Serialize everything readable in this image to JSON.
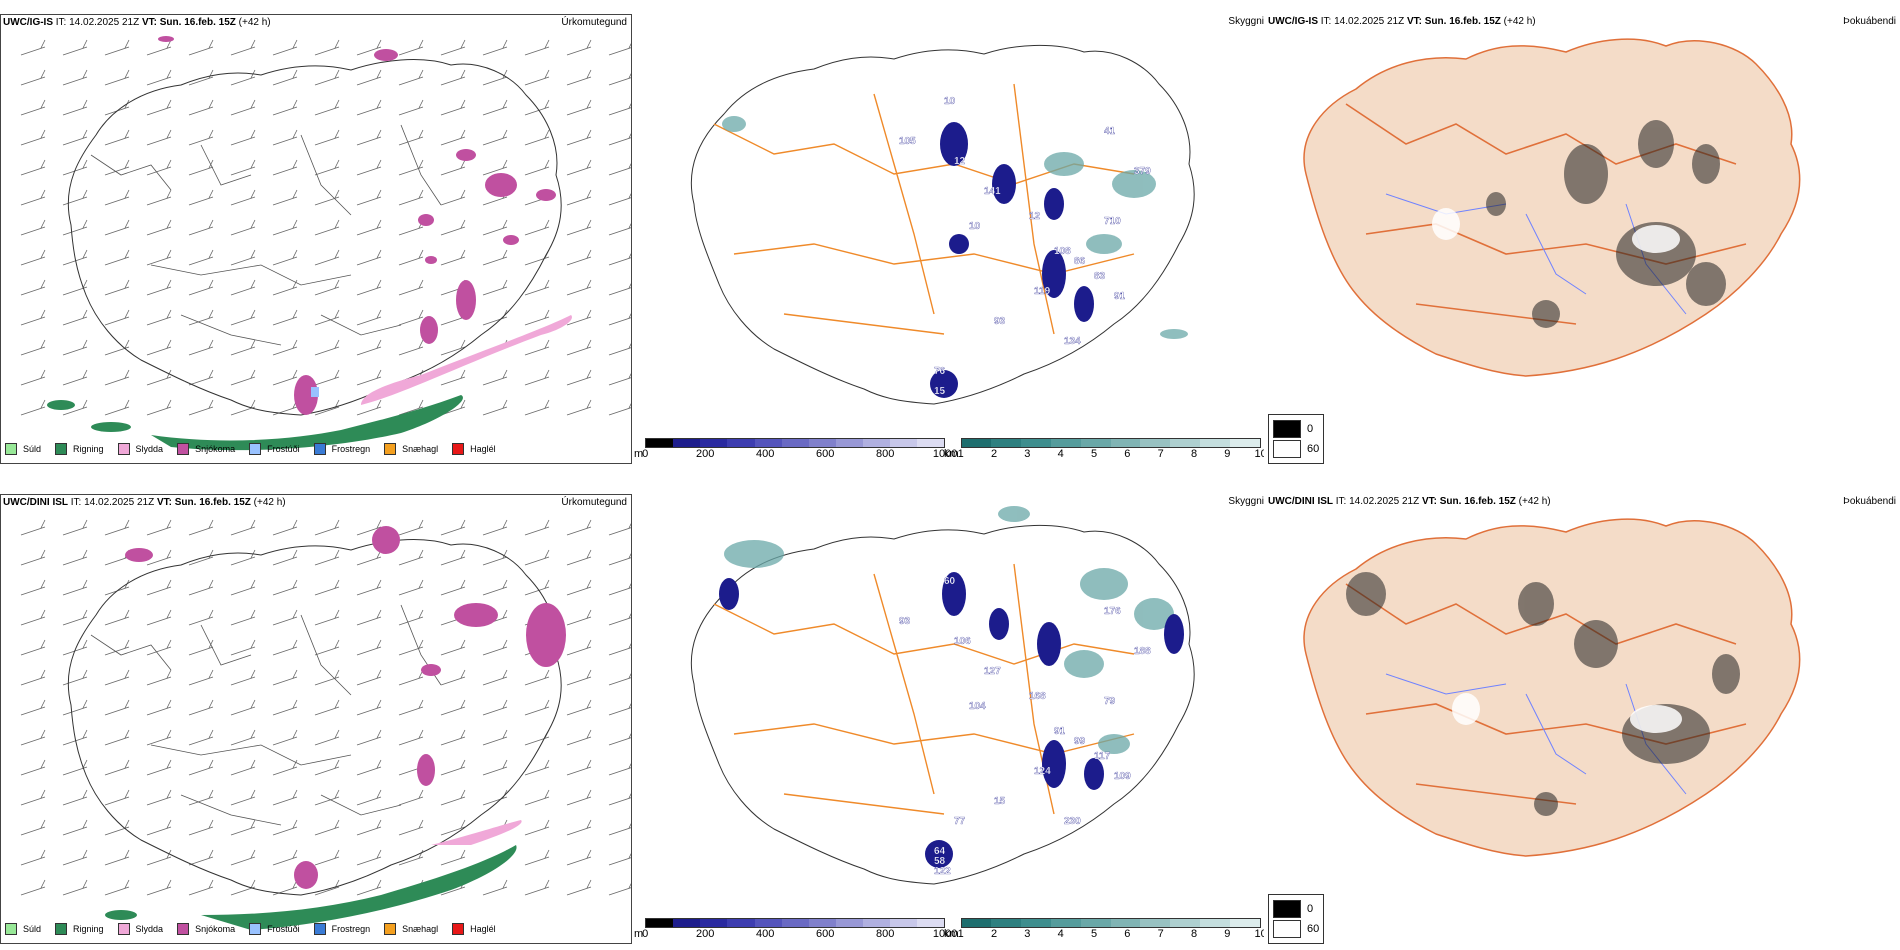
{
  "colors": {
    "roads": "#ef8a2a",
    "rivers": "#6f82ff",
    "land_fog": "#f4dcc8",
    "rain": "#2e8b57",
    "snow": "#c050a0",
    "sleet": "#f0a8d8",
    "drizzle": "#98e898",
    "freezing_drizzle": "#99c2ff",
    "freezing_rain": "#3a7bd5",
    "snow_grain": "#f4a020",
    "hail": "#e81818",
    "ceiling_blue": "#1c1c8c",
    "visibility_teal": "#2e8b8b"
  },
  "rows": [
    {
      "model": "UWC/IG-IS",
      "it_label": "IT:",
      "it_value": "14.02.2025 21Z",
      "vt_label": "VT:",
      "vt_value": "Sun. 16.feb. 15Z",
      "lead": "(+42 h)",
      "panels": {
        "precip": "Úrkomutegund",
        "visibility": "Skyggni",
        "fog": "Þokuábendi"
      },
      "ceiling_labels": [
        "10",
        "105",
        "12",
        "141",
        "12",
        "10",
        "108",
        "119",
        "93",
        "134",
        "76",
        "15",
        "41",
        "379",
        "710",
        "86",
        "83",
        "91"
      ]
    },
    {
      "model": "UWC/DINI ISL",
      "it_label": "IT:",
      "it_value": "14.02.2025 21Z",
      "vt_label": "VT:",
      "vt_value": "Sun. 16.feb. 15Z",
      "lead": "(+42 h)",
      "panels": {
        "precip": "Úrkomutegund",
        "visibility": "Skyggni",
        "fog": "Þokuábendi"
      },
      "ceiling_labels": [
        "60",
        "93",
        "106",
        "127",
        "168",
        "104",
        "91",
        "124",
        "15",
        "230",
        "64",
        "122",
        "176",
        "188",
        "79",
        "99",
        "117",
        "109",
        "77",
        "58"
      ]
    }
  ],
  "precip_legend": [
    {
      "label": "Súld",
      "color": "#98e898"
    },
    {
      "label": "Rigning",
      "color": "#2e8b57"
    },
    {
      "label": "Slydda",
      "color": "#f0a8d8"
    },
    {
      "label": "Snjókoma",
      "color": "#c050a0"
    },
    {
      "label": "Frostúði",
      "color": "#99c2ff"
    },
    {
      "label": "Frostregn",
      "color": "#3a7bd5"
    },
    {
      "label": "Snæhagl",
      "color": "#f4a020"
    },
    {
      "label": "Haglél",
      "color": "#e81818"
    }
  ],
  "ceiling_bar": {
    "unit": "m",
    "ticks": [
      "0",
      "200",
      "400",
      "600",
      "800",
      "1000"
    ],
    "colors": [
      "#000000",
      "#1c1c8c",
      "#2a2aa0",
      "#3d3db0",
      "#5454bc",
      "#6a6ac4",
      "#8080cc",
      "#9898d6",
      "#b0b0e0",
      "#c8c8ea",
      "#dcdcf2"
    ]
  },
  "vis_bar": {
    "unit": "km",
    "ticks": [
      "1",
      "2",
      "3",
      "4",
      "5",
      "6",
      "7",
      "8",
      "9",
      "10"
    ],
    "colors": [
      "#1e6e6e",
      "#2e8080",
      "#3e8e8e",
      "#559c9c",
      "#6aa8a8",
      "#80b4b4",
      "#98c2c2",
      "#aed0d0",
      "#c4dede",
      "#dcecec"
    ]
  },
  "fog_legend": [
    "0",
    "60"
  ]
}
